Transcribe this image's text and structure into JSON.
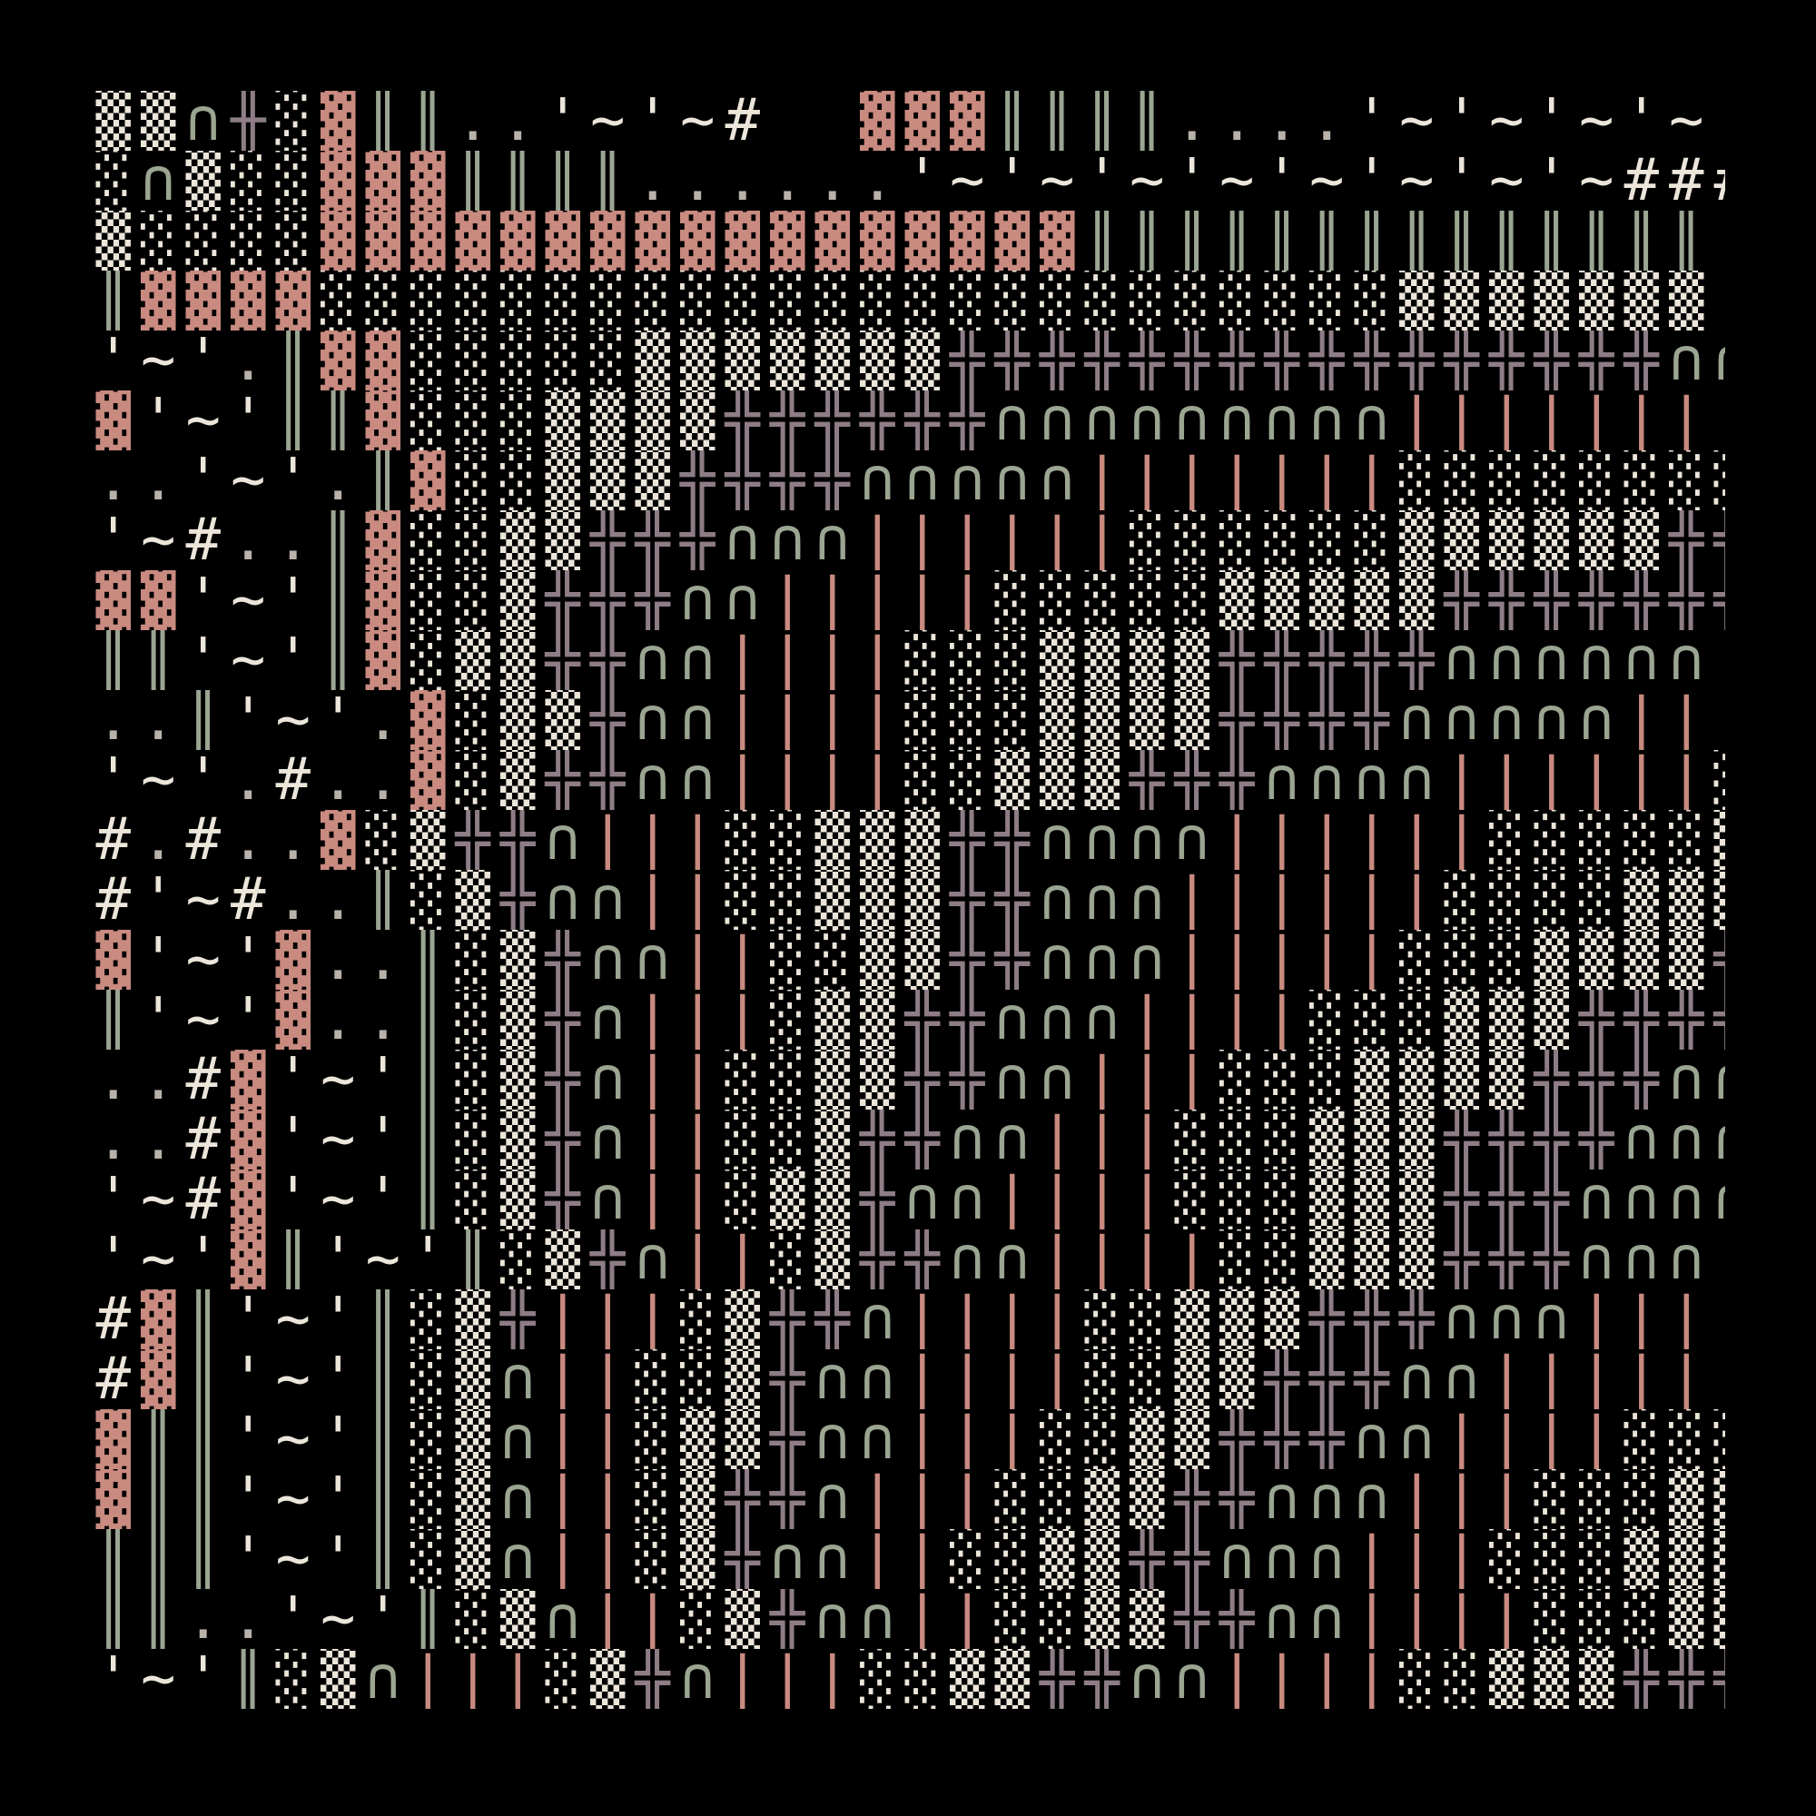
{
  "palette": {
    "background": "#000000",
    "cream": "#ECE5DA",
    "salmon": "#C98A80",
    "sage": "#9AA592",
    "mauve": "#8E7D86",
    "gray": "#B8B2AA"
  },
  "glyph_colors": {
    "▓": "salmon",
    "▒": "cream",
    "░": "cream",
    "║": "sage",
    "╬": "mauve",
    "╫": "mauve",
    "∩": "sage",
    "|": "salmon",
    "#": "cream",
    "'": "cream",
    "~": "cream",
    ".": "gray",
    "_": "cream"
  },
  "rows": [
    "▒▒∩╫░▓║║..'~'~#  ▓▓▓║║║║....'~'~'~'~'~#####",
    "░∩▒░░▓▓▓║║║║......'~'~'~'~'~'~'~'~########",
    "▒░░░░▓▓▓▓▓▓▓▓▓▓▓▓▓▓▓▓▓║║║║║║║║║║║║║║",
    "║▓▓▓▓░░░░░░░░░░░░░░░░░░░░░░░░▒▒▒▒▒▒▒",
    "'~'.║▓▓░░░░░▒▒▒▒▒▒▒╬╬╬╬╬╬╬╬╬╬╬╬╬╬╬╬∩∩",
    "▓'~'║║▓░░░▒▒▒▒╬╬╬╬╬╬∩∩∩∩∩∩∩∩∩||||||||",
    "..'~'.║▓░░▒▒▒╬╬╬╬∩∩∩∩∩|||||||░░░░░░░░░░▒",
    "'~#..║▓░░▒▒╬╬╬∩∩∩||||||░░░░░░▒▒▒▒▒▒╬╬╬",
    "▓▓'~'║▓░░▒╬╬╬∩∩|||||░░░░░▒▒▒▒▒╬╬╬╬╬╬╬∩∩∩",
    "║║'~'║▓░▒▒╬╬∩∩||||░░░▒▒▒▒╬╬╬╬╬∩∩∩∩∩∩||||",
    "..║'~'.▓░▒▒╬∩∩||||░░░▒▒▒▒╬╬╬╬∩∩∩∩∩||||||░░",
    "'~'.#..▓░▒╬╬∩∩||||░░▒▒▒╬╬╬∩∩∩∩||||||░░░░░░",
    "#.#..▓░▒╬╬∩|||░░▒▒▒╬╬∩∩∩∩||||||░░░░░▒▒▒",
    "#'~#..║░▒╬∩∩||░░▒▒▒╬╬∩∩∩||||||░░░░▒▒▒╬╬",
    "▓'~'▓..║░▒╬∩∩||░░▒▒╬╬∩∩∩|||||░░░▒▒▒▒╬╬╬╬∩",
    "║'~'▓..║░▒╬∩|||░▒▒╬╬∩∩∩||||░░░▒▒▒╬╬╬╬╬∩∩∩",
    "..#▓'~'║░▒╬∩||░░▒▒╬╬∩∩|||░░░▒▒▒▒╬╬╬∩∩∩∩∩||",
    "..#▓'~'║░▒╬∩||░░▒╬╬∩∩|||░░░▒▒▒╬╬╬╬∩∩∩|||||",
    "'~#▓'~'║░▒╬∩||░▒▒╬∩∩||||░░░▒▒▒╬╬╬∩∩∩∩|||||░",
    "'~'▓║'~'║░▒╬∩||░▒╬╬∩∩||||░░▒▒▒╬╬╬∩∩∩||||||░░",
    "#▓║'~'║░▒╬|||░▒╬╬∩||||░░▒▒▒╬╬╬∩∩∩||||░░░░░",
    "#▓║'~'║░▒∩||░░▒╬∩∩||||░░▒▒╬╬╬∩∩||||||░░░▒▒",
    "▓║║'~'║░▒∩||░▒▒╬∩∩|||░░▒▒╬╬╬∩∩||||░░░▒▒▒▒",
    "▓║║'~'║░▒∩||░▒╬╬∩|||░░▒▒╬╬∩∩∩|||░░░▒▒▒▒╬╬",
    "║║║'~'║░▒∩||░▒╬∩∩||░░▒▒╬╬∩∩∩|||░░░▒▒▒▒╬╬╬∩",
    "║║..'~'║░▒∩||░▒╬∩∩||░░▒▒╬╬∩∩||||░░░▒▒▒╬╬╬∩∩",
    "'~'║░▒∩|||░▒╬∩|||░░▒▒╬╬∩∩||||░░▒▒▒╬╬╬╬∩∩"
  ]
}
